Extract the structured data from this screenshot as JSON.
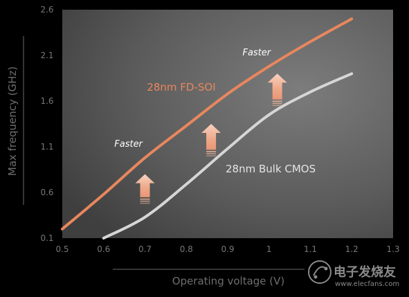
{
  "chart_data": {
    "type": "line",
    "xlabel": "Operating voltage (V)",
    "ylabel": "Max frequency (GHz)",
    "xlim": [
      0.5,
      1.3
    ],
    "ylim": [
      0.1,
      2.6
    ],
    "x_ticks": [
      "0.5",
      "0.6",
      "0.7",
      "0.8",
      "0.9",
      "1",
      "1.1",
      "1.2",
      "1.3"
    ],
    "y_ticks": [
      "0.1",
      "0.6",
      "1.1",
      "1.6",
      "2.1",
      "2.6"
    ],
    "grid": false,
    "series": [
      {
        "name": "28nm FD-SOI",
        "color": "#e8875e",
        "x": [
          0.5,
          0.6,
          0.7,
          0.8,
          0.9,
          1.0,
          1.1,
          1.2
        ],
        "y": [
          0.2,
          0.58,
          0.98,
          1.33,
          1.68,
          1.98,
          2.25,
          2.5
        ]
      },
      {
        "name": "28nm Bulk CMOS",
        "color": "#d6d6d6",
        "x": [
          0.6,
          0.7,
          0.8,
          0.9,
          1.0,
          1.1,
          1.2
        ],
        "y": [
          0.1,
          0.33,
          0.69,
          1.08,
          1.45,
          1.7,
          1.9
        ]
      }
    ],
    "annotations": [
      {
        "text": "Faster",
        "x": 0.66,
        "y": 1.1
      },
      {
        "text": "Faster",
        "x": 0.97,
        "y": 2.1
      }
    ],
    "arrows": [
      {
        "x": 0.7,
        "y_from": 0.48,
        "y_to": 0.8
      },
      {
        "x": 0.86,
        "y_from": 1.0,
        "y_to": 1.35
      },
      {
        "x": 1.02,
        "y_from": 1.55,
        "y_to": 1.9
      }
    ]
  },
  "watermark": {
    "brand": "电子发烧友",
    "url": "www.elecfans.com"
  }
}
